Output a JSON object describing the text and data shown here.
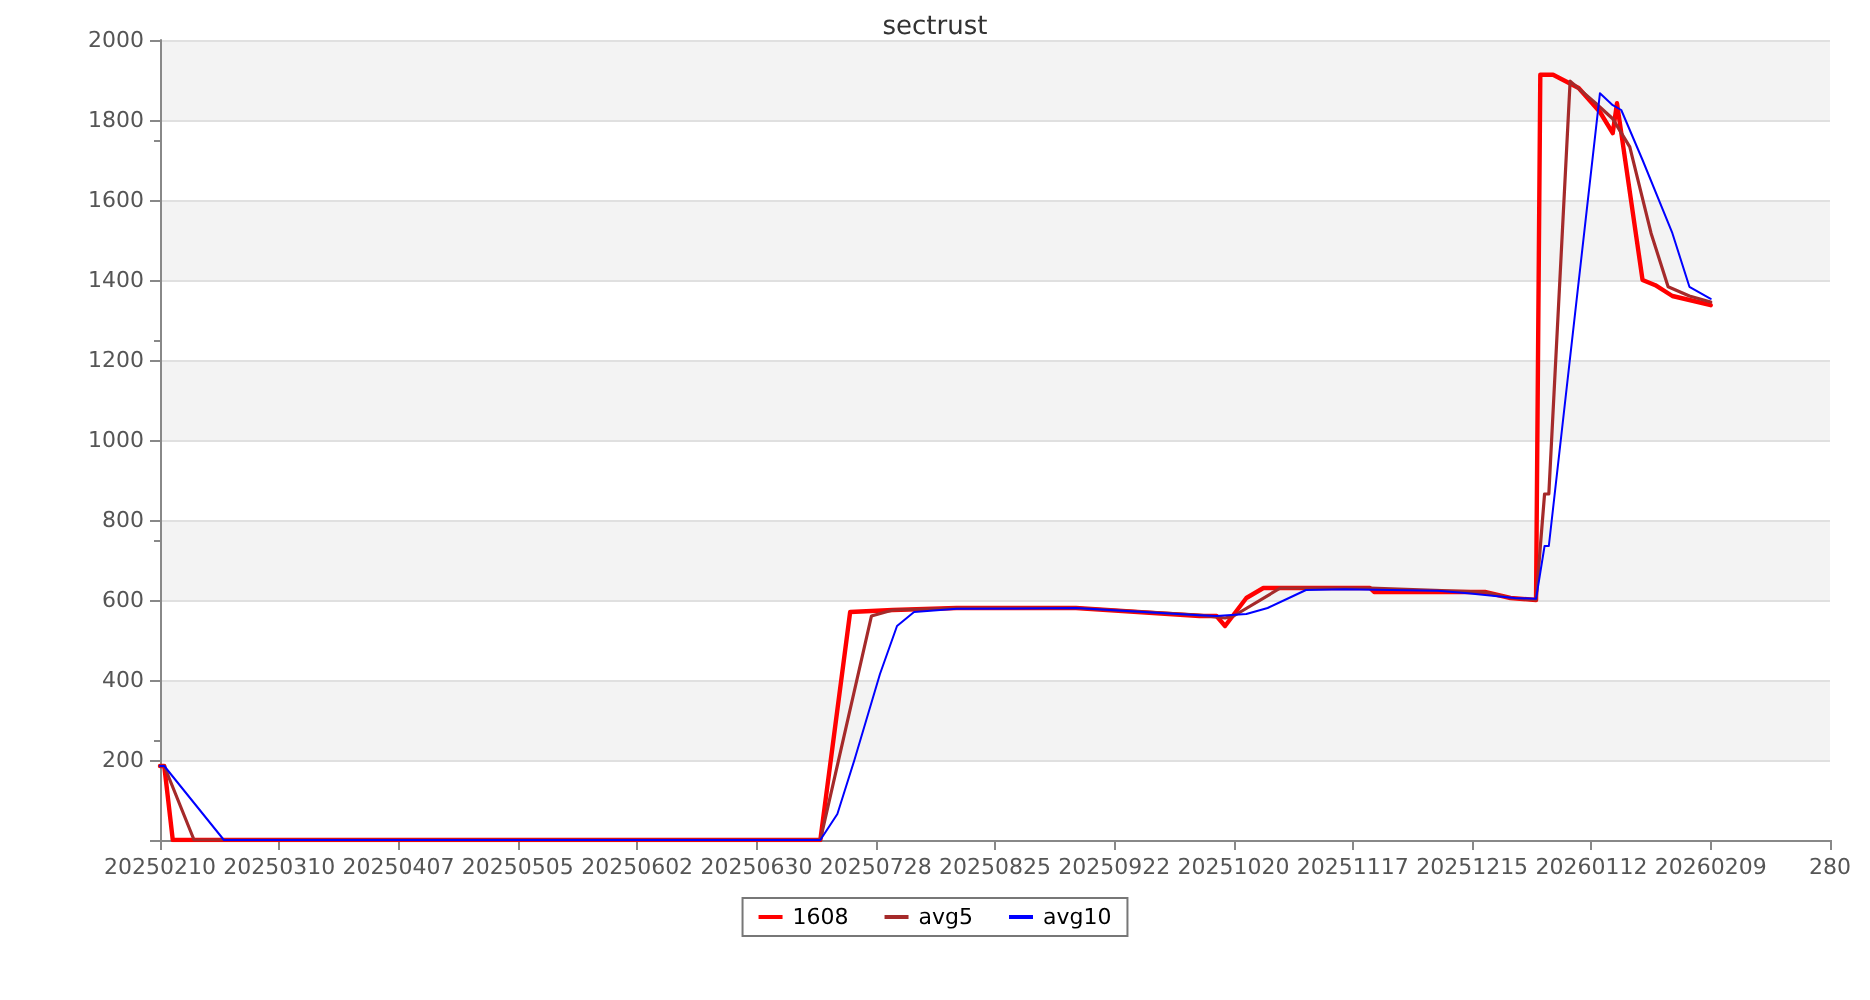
{
  "chart_data": {
    "type": "line",
    "title": "sectrust",
    "xlim": [
      "2025-02-10",
      "2026-03-09"
    ],
    "xticks": [
      {
        "value": "2025-02-10",
        "label": "20250210"
      },
      {
        "value": "2025-03-10",
        "label": "20250310"
      },
      {
        "value": "2025-04-07",
        "label": "20250407"
      },
      {
        "value": "2025-05-05",
        "label": "20250505"
      },
      {
        "value": "2025-06-02",
        "label": "20250602"
      },
      {
        "value": "2025-06-30",
        "label": "20250630"
      },
      {
        "value": "2025-07-28",
        "label": "20250728"
      },
      {
        "value": "2025-08-25",
        "label": "20250825"
      },
      {
        "value": "2025-09-22",
        "label": "20250922"
      },
      {
        "value": "2025-10-20",
        "label": "20251020"
      },
      {
        "value": "2025-11-17",
        "label": "20251117"
      },
      {
        "value": "2025-12-15",
        "label": "20251215"
      },
      {
        "value": "2026-01-12",
        "label": "20260112"
      },
      {
        "value": "2026-02-09",
        "label": "20260209"
      },
      {
        "value": "2026-03-09",
        "label": "280"
      }
    ],
    "ylim": [
      0,
      2000
    ],
    "yticks": [
      {
        "value": 0,
        "label": null
      },
      200,
      400,
      600,
      800,
      1000,
      1200,
      1400,
      1600,
      1800,
      2000
    ],
    "grid": "y",
    "legend": "bottom",
    "marker": "none",
    "line_style": "solid",
    "series": [
      {
        "name": "1608",
        "color": "#ff0000",
        "x": [
          "2025-02-10",
          "2025-02-11",
          "2025-02-13",
          "2025-07-15",
          "2025-07-22",
          "2025-08-01",
          "2025-08-16",
          "2025-09-13",
          "2025-10-12",
          "2025-10-16",
          "2025-10-18",
          "2025-10-23",
          "2025-10-27",
          "2025-11-21",
          "2025-11-22",
          "2025-12-18",
          "2025-12-24",
          "2025-12-30",
          "2025-12-31",
          "2026-01-03",
          "2026-01-09",
          "2026-01-14",
          "2026-01-17",
          "2026-01-18",
          "2026-01-24",
          "2026-01-27",
          "2026-01-31",
          "2026-02-06",
          "2026-02-09"
        ],
        "values": [
          185,
          185,
          0,
          0,
          570,
          575,
          580,
          580,
          560,
          560,
          535,
          605,
          630,
          630,
          620,
          620,
          605,
          600,
          1913,
          1913,
          1880,
          1820,
          1767,
          1842,
          1400,
          1387,
          1360,
          1345,
          1337
        ]
      },
      {
        "name": "avg5",
        "color": "#a52a2a",
        "x": [
          "2025-02-10",
          "2025-02-11",
          "2025-02-18",
          "2025-07-15",
          "2025-07-27",
          "2025-08-01",
          "2025-08-16",
          "2025-09-13",
          "2025-10-12",
          "2025-10-18",
          "2025-10-20",
          "2025-10-31",
          "2025-11-21",
          "2025-12-18",
          "2025-12-24",
          "2025-12-30",
          "2026-01-01",
          "2026-01-02",
          "2026-01-07",
          "2026-01-13",
          "2026-01-17",
          "2026-01-21",
          "2026-01-26",
          "2026-01-30",
          "2026-02-04",
          "2026-02-09"
        ],
        "values": [
          185,
          185,
          0,
          0,
          560,
          575,
          580,
          580,
          562,
          555,
          560,
          630,
          630,
          620,
          605,
          600,
          865,
          865,
          1897,
          1842,
          1803,
          1733,
          1517,
          1383,
          1360,
          1345
        ]
      },
      {
        "name": "avg10",
        "color": "#0000ff",
        "x": [
          "2025-02-10",
          "2025-02-11",
          "2025-02-25",
          "2025-07-15",
          "2025-07-19",
          "2025-07-23",
          "2025-07-29",
          "2025-08-02",
          "2025-08-06",
          "2025-08-16",
          "2025-09-13",
          "2025-10-12",
          "2025-10-16",
          "2025-10-23",
          "2025-10-28",
          "2025-11-03",
          "2025-11-06",
          "2025-11-15",
          "2025-12-07",
          "2025-12-14",
          "2025-12-25",
          "2025-12-30",
          "2026-01-01",
          "2026-01-02",
          "2026-01-14",
          "2026-01-17",
          "2026-01-19",
          "2026-01-24",
          "2026-01-31",
          "2026-02-04",
          "2026-02-09"
        ],
        "values": [
          185,
          185,
          0,
          0,
          65,
          200,
          415,
          535,
          570,
          578,
          580,
          562,
          560,
          565,
          580,
          610,
          625,
          627,
          623,
          617,
          605,
          603,
          735,
          735,
          1867,
          1837,
          1825,
          1700,
          1517,
          1383,
          1353
        ]
      }
    ]
  }
}
